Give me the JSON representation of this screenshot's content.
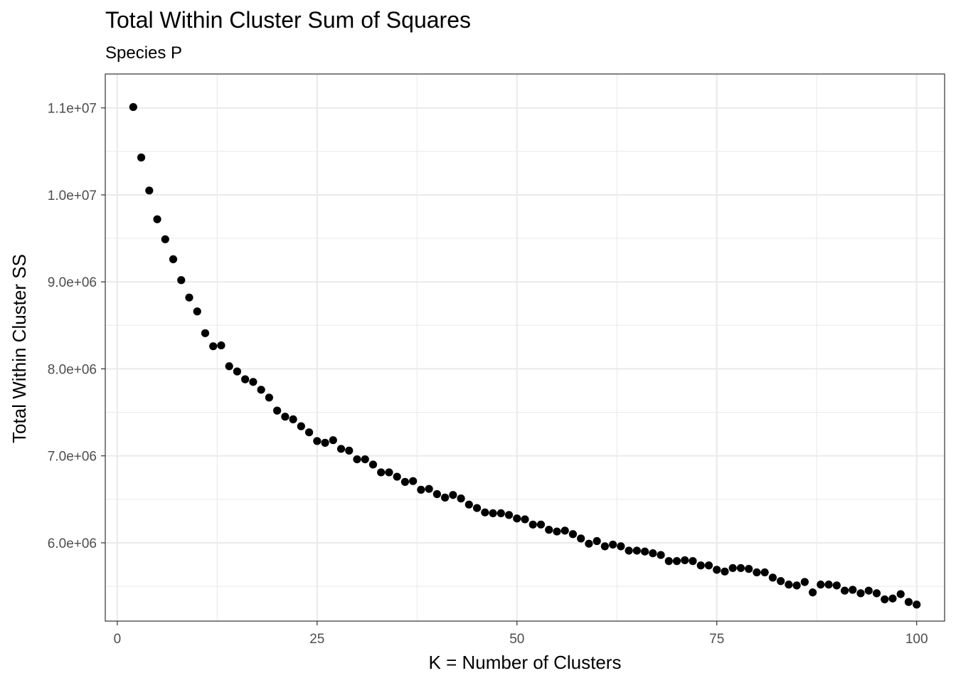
{
  "chart_data": {
    "type": "scatter",
    "title": "Total Within Cluster Sum of Squares",
    "subtitle": "Species P",
    "xlabel": "K = Number of Clusters",
    "ylabel": "Total Within Cluster SS",
    "xlim": [
      -1.5,
      103.5
    ],
    "ylim": [
      5100000,
      11390000
    ],
    "x_ticks": [
      0,
      25,
      50,
      75,
      100
    ],
    "x_tick_labels": [
      "0",
      "25",
      "50",
      "75",
      "100"
    ],
    "x_minor_ticks": [
      12.5,
      37.5,
      62.5,
      87.5
    ],
    "y_ticks": [
      6000000,
      7000000,
      8000000,
      9000000,
      10000000,
      11000000
    ],
    "y_tick_labels": [
      "6.0e+06",
      "7.0e+06",
      "8.0e+06",
      "9.0e+06",
      "1.0e+07",
      "1.1e+07"
    ],
    "y_minor_ticks": [
      5500000,
      6500000,
      7500000,
      8500000,
      9500000,
      10500000
    ],
    "grid": true,
    "point_color": "#000000",
    "grid_color": "#ebebeb",
    "panel_border_color": "#333333",
    "tick_label_color": "#4d4d4d",
    "x": [
      2,
      3,
      4,
      5,
      6,
      7,
      8,
      9,
      10,
      11,
      12,
      13,
      14,
      15,
      16,
      17,
      18,
      19,
      20,
      21,
      22,
      23,
      24,
      25,
      26,
      27,
      28,
      29,
      30,
      31,
      32,
      33,
      34,
      35,
      36,
      37,
      38,
      39,
      40,
      41,
      42,
      43,
      44,
      45,
      46,
      47,
      48,
      49,
      50,
      51,
      52,
      53,
      54,
      55,
      56,
      57,
      58,
      59,
      60,
      61,
      62,
      63,
      64,
      65,
      66,
      67,
      68,
      69,
      70,
      71,
      72,
      73,
      74,
      75,
      76,
      77,
      78,
      79,
      80,
      81,
      82,
      83,
      84,
      85,
      86,
      87,
      88,
      89,
      90,
      91,
      92,
      93,
      94,
      95,
      96,
      97,
      98,
      99,
      100
    ],
    "y": [
      11010000,
      10430000,
      10050000,
      9720000,
      9490000,
      9260000,
      9020000,
      8820000,
      8660000,
      8410000,
      8260000,
      8270000,
      8030000,
      7970000,
      7880000,
      7850000,
      7760000,
      7670000,
      7520000,
      7450000,
      7420000,
      7340000,
      7270000,
      7170000,
      7150000,
      7180000,
      7080000,
      7060000,
      6960000,
      6960000,
      6900000,
      6810000,
      6810000,
      6760000,
      6700000,
      6710000,
      6610000,
      6620000,
      6560000,
      6520000,
      6550000,
      6510000,
      6440000,
      6400000,
      6350000,
      6340000,
      6340000,
      6320000,
      6280000,
      6270000,
      6210000,
      6210000,
      6150000,
      6130000,
      6140000,
      6100000,
      6050000,
      5990000,
      6020000,
      5960000,
      5980000,
      5960000,
      5910000,
      5910000,
      5900000,
      5880000,
      5860000,
      5790000,
      5790000,
      5800000,
      5790000,
      5740000,
      5740000,
      5690000,
      5670000,
      5710000,
      5710000,
      5700000,
      5660000,
      5660000,
      5600000,
      5560000,
      5520000,
      5510000,
      5550000,
      5430000,
      5520000,
      5520000,
      5510000,
      5450000,
      5460000,
      5420000,
      5450000,
      5420000,
      5350000,
      5360000,
      5410000,
      5320000,
      5290000
    ]
  }
}
